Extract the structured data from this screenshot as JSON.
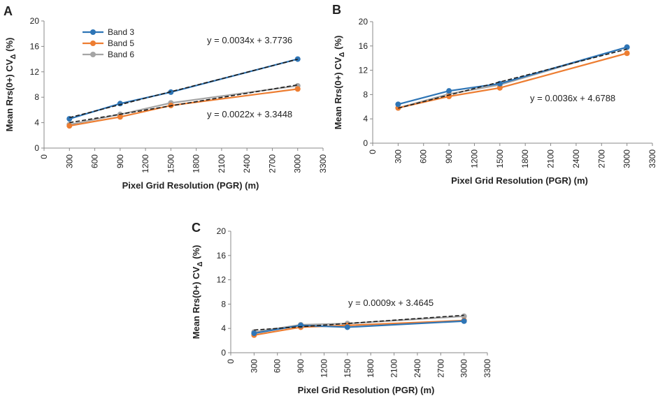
{
  "colors": {
    "band3": "#2e75b6",
    "band5": "#ed7d31",
    "band6": "#a5a5a5",
    "trend": "#1a1a1a",
    "axis": "#888888"
  },
  "chart_data": [
    {
      "panel": "A",
      "type": "line",
      "xlabel": "Pixel Grid Resolution (PGR) (m)",
      "ylabel": "Mean Rrs(0+) CV",
      "ylabel_sub": "Δ",
      "ylabel_unit": " (%)",
      "xlim": [
        0,
        3300
      ],
      "ylim": [
        0,
        20
      ],
      "xticks": [
        0,
        300,
        600,
        900,
        1200,
        1500,
        1800,
        2100,
        2400,
        2700,
        3000,
        3300
      ],
      "yticks": [
        0,
        4,
        8,
        12,
        16,
        20
      ],
      "x": [
        300,
        900,
        1500,
        3000
      ],
      "series": [
        {
          "name": "Band 3",
          "color": "#2e75b6",
          "values": [
            4.6,
            7.0,
            8.8,
            14.0
          ]
        },
        {
          "name": "Band 5",
          "color": "#ed7d31",
          "values": [
            3.5,
            4.9,
            6.7,
            9.3
          ]
        },
        {
          "name": "Band 6",
          "color": "#a5a5a5",
          "values": [
            3.7,
            5.3,
            7.1,
            9.8
          ]
        }
      ],
      "trendlines": [
        {
          "slope": 0.0034,
          "intercept": 3.7736,
          "label": "y = 0.0034x + 3.7736"
        },
        {
          "slope": 0.0022,
          "intercept": 3.3448,
          "label": "y = 0.0022x + 3.3448"
        }
      ],
      "legend": [
        "Band 3",
        "Band 5",
        "Band 6"
      ]
    },
    {
      "panel": "B",
      "type": "line",
      "xlabel": "Pixel Grid Resolution (PGR) (m)",
      "ylabel": "Mean Rrs(0+) CV",
      "ylabel_sub": "Δ",
      "ylabel_unit": " (%)",
      "xlim": [
        0,
        3300
      ],
      "ylim": [
        0,
        20
      ],
      "xticks": [
        0,
        300,
        600,
        900,
        1200,
        1500,
        1800,
        2100,
        2400,
        2700,
        3000,
        3300
      ],
      "yticks": [
        0,
        4,
        8,
        12,
        16,
        20
      ],
      "x": [
        300,
        900,
        1500,
        3000
      ],
      "series": [
        {
          "name": "Band 3",
          "color": "#2e75b6",
          "values": [
            6.4,
            8.6,
            9.8,
            15.8
          ]
        },
        {
          "name": "Band 5",
          "color": "#ed7d31",
          "values": [
            5.8,
            7.7,
            9.1,
            14.8
          ]
        },
        {
          "name": "Band 6",
          "color": "#a5a5a5",
          "values": [
            5.8,
            8.1,
            9.6,
            15.8
          ]
        }
      ],
      "trendlines": [
        {
          "slope": 0.0036,
          "intercept": 4.6788,
          "label": "y = 0.0036x + 4.6788"
        }
      ]
    },
    {
      "panel": "C",
      "type": "line",
      "xlabel": "Pixel Grid Resolution (PGR) (m)",
      "ylabel": "Mean Rrs(0+) CV",
      "ylabel_sub": "Δ",
      "ylabel_unit": " (%)",
      "xlim": [
        0,
        3300
      ],
      "ylim": [
        0,
        20
      ],
      "xticks": [
        0,
        300,
        600,
        900,
        1200,
        1500,
        1800,
        2100,
        2400,
        2700,
        3000,
        3300
      ],
      "yticks": [
        0,
        4,
        8,
        12,
        16,
        20
      ],
      "x": [
        300,
        900,
        1500,
        3000
      ],
      "series": [
        {
          "name": "Band 3",
          "color": "#2e75b6",
          "values": [
            3.2,
            4.5,
            4.2,
            5.2
          ]
        },
        {
          "name": "Band 5",
          "color": "#ed7d31",
          "values": [
            2.9,
            4.2,
            4.5,
            5.3
          ]
        },
        {
          "name": "Band 6",
          "color": "#a5a5a5",
          "values": [
            3.4,
            4.6,
            4.8,
            6.0
          ]
        }
      ],
      "trendlines": [
        {
          "slope": 0.0009,
          "intercept": 3.4645,
          "label": "y = 0.0009x + 3.4645"
        }
      ]
    }
  ]
}
